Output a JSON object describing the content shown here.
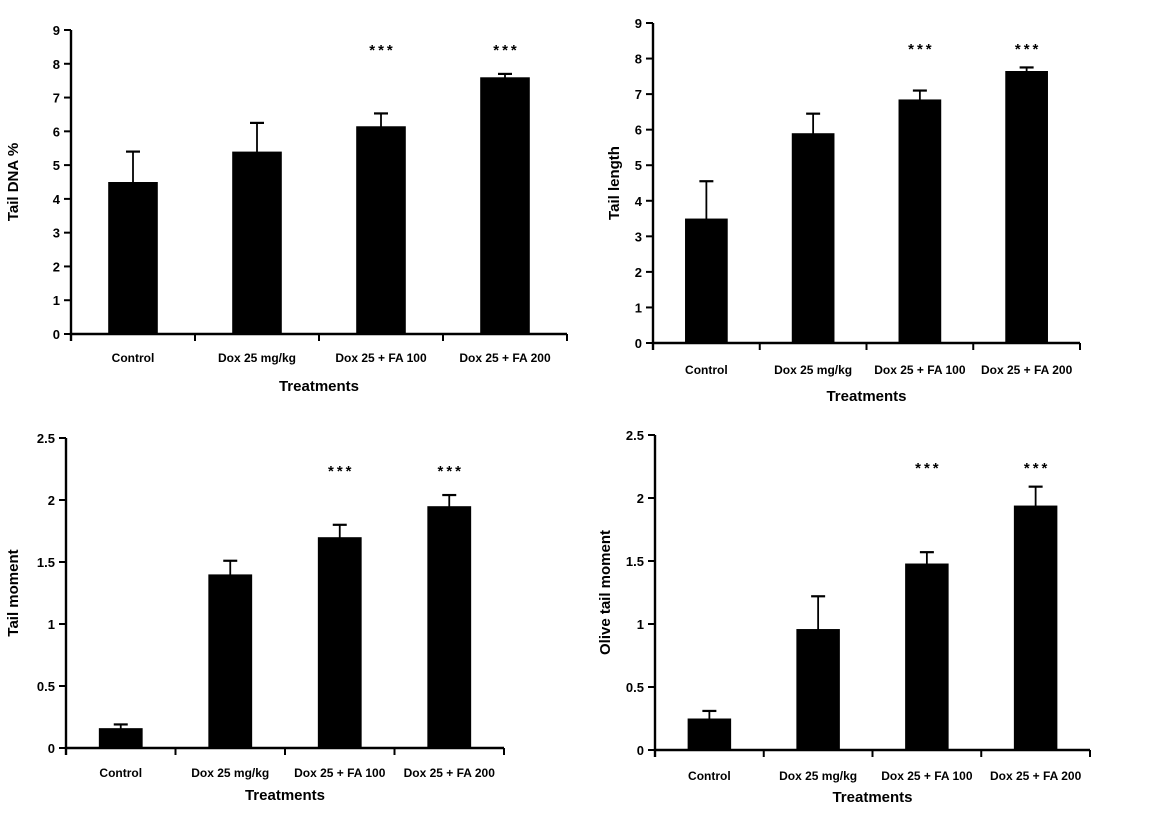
{
  "figure": {
    "description": "Four bar charts of comet assay parameters by treatment",
    "background_color": "#ffffff",
    "text_color": "#000000",
    "bar_color": "#000000"
  },
  "chart_data": [
    {
      "id": "tail-dna-percent",
      "type": "bar",
      "title": "",
      "ylabel": "Tail DNA %",
      "xlabel": "Treatments",
      "categories": [
        "Control",
        "Dox 25 mg/kg",
        "Dox 25 + FA 100",
        "Dox 25 + FA 200"
      ],
      "values": [
        4.5,
        5.4,
        6.15,
        7.6
      ],
      "errors": [
        0.9,
        0.85,
        0.38,
        0.1
      ],
      "significance": [
        "",
        "",
        "***",
        "***"
      ],
      "sig_marker_y": 8.5,
      "ylim": [
        0,
        9
      ],
      "ytick_values": [
        0,
        1,
        2,
        3,
        4,
        5,
        6,
        7,
        8,
        9
      ],
      "ytick_labels": [
        "0",
        "1",
        "2",
        "3",
        "4",
        "5",
        "6",
        "7",
        "8",
        "9"
      ],
      "bar_color": "#000000",
      "grid": false,
      "legend": "none"
    },
    {
      "id": "tail-length",
      "type": "bar",
      "title": "",
      "ylabel": "Tail length",
      "xlabel": "Treatments",
      "categories": [
        "Control",
        "Dox 25 mg/kg",
        "Dox 25 + FA 100",
        "Dox 25 + FA 200"
      ],
      "values": [
        3.5,
        5.9,
        6.85,
        7.65
      ],
      "errors": [
        1.05,
        0.55,
        0.25,
        0.1
      ],
      "significance": [
        "",
        "",
        "***",
        "***"
      ],
      "sig_marker_y": 8.35,
      "ylim": [
        0,
        9
      ],
      "ytick_values": [
        0,
        1,
        2,
        3,
        4,
        5,
        6,
        7,
        8,
        9
      ],
      "ytick_labels": [
        "0",
        "1",
        "2",
        "3",
        "4",
        "5",
        "6",
        "7",
        "8",
        "9"
      ],
      "bar_color": "#000000",
      "grid": false,
      "legend": "none"
    },
    {
      "id": "tail-moment",
      "type": "bar",
      "title": "",
      "ylabel": "Tail moment",
      "xlabel": "Treatments",
      "categories": [
        "Control",
        "Dox 25 mg/kg",
        "Dox 25 + FA 100",
        "Dox 25 + FA 200"
      ],
      "values": [
        0.16,
        1.4,
        1.7,
        1.95
      ],
      "errors": [
        0.03,
        0.11,
        0.1,
        0.09
      ],
      "significance": [
        "",
        "",
        "***",
        "***"
      ],
      "sig_marker_y": 2.26,
      "ylim": [
        0,
        2.5
      ],
      "ytick_values": [
        0,
        0.5,
        1,
        1.5,
        2,
        2.5
      ],
      "ytick_labels": [
        "0",
        "0.5",
        "1",
        "1.5",
        "2",
        "2.5"
      ],
      "bar_color": "#000000",
      "grid": false,
      "legend": "none"
    },
    {
      "id": "olive-tail-moment",
      "type": "bar",
      "title": "",
      "ylabel": "Olive tail moment",
      "xlabel": "Treatments",
      "categories": [
        "Control",
        "Dox 25 mg/kg",
        "Dox 25 + FA 100",
        "Dox 25 + FA 200"
      ],
      "values": [
        0.25,
        0.96,
        1.48,
        1.94
      ],
      "errors": [
        0.06,
        0.26,
        0.09,
        0.15
      ],
      "significance": [
        "",
        "",
        "***",
        "***"
      ],
      "sig_marker_y": 2.26,
      "ylim": [
        0,
        2.5
      ],
      "ytick_values": [
        0,
        0.5,
        1,
        1.5,
        2,
        2.5
      ],
      "ytick_labels": [
        "0",
        "0.5",
        "1",
        "1.5",
        "2",
        "2.5"
      ],
      "bar_color": "#000000",
      "grid": false,
      "legend": "none"
    }
  ]
}
